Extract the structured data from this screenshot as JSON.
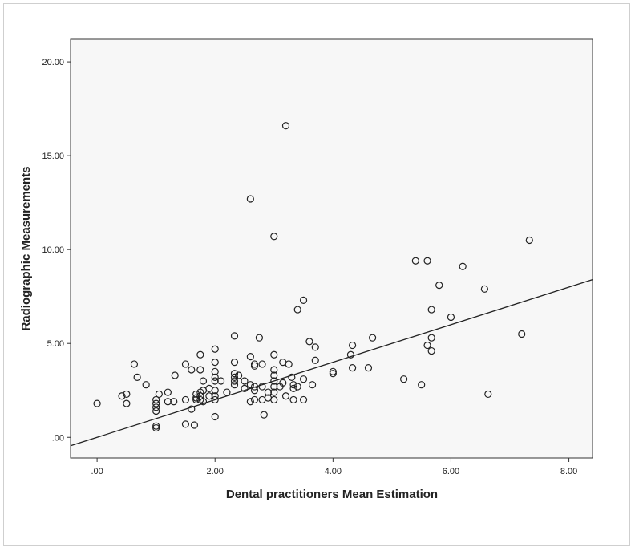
{
  "chart_data": {
    "type": "scatter",
    "title": "",
    "xlabel": "Dental practitioners Mean Estimation",
    "ylabel": "Radiographic Measurements",
    "xlim": [
      -0.45,
      8.4
    ],
    "ylim": [
      -1.1,
      21.2
    ],
    "x_ticks": [
      0,
      2,
      4,
      6,
      8
    ],
    "x_tick_labels": [
      ".00",
      "2.00",
      "4.00",
      "6.00",
      "8.00"
    ],
    "y_ticks": [
      0,
      5,
      10,
      15,
      20
    ],
    "y_tick_labels": [
      ".00",
      "5.00",
      "10.00",
      "15.00",
      "20.00"
    ],
    "reference_line": "y = x",
    "grid": false,
    "colors": {
      "plot_background": "#f7f7f7",
      "marker_stroke": "#222222",
      "line": "#222222"
    },
    "points": [
      [
        0,
        1.8
      ],
      [
        0.42,
        2.2
      ],
      [
        0.5,
        2.3
      ],
      [
        0.5,
        1.8
      ],
      [
        0.63,
        3.9
      ],
      [
        0.68,
        3.2
      ],
      [
        0.83,
        2.8
      ],
      [
        1,
        2.0
      ],
      [
        1,
        1.8
      ],
      [
        1,
        1.6
      ],
      [
        1,
        1.4
      ],
      [
        1,
        0.6
      ],
      [
        1,
        0.5
      ],
      [
        1.05,
        2.3
      ],
      [
        1.2,
        1.9
      ],
      [
        1.2,
        2.4
      ],
      [
        1.3,
        1.9
      ],
      [
        1.32,
        3.3
      ],
      [
        1.5,
        2.0
      ],
      [
        1.5,
        3.9
      ],
      [
        1.5,
        0.7
      ],
      [
        1.6,
        1.5
      ],
      [
        1.6,
        3.6
      ],
      [
        1.65,
        0.65
      ],
      [
        1.68,
        2.3
      ],
      [
        1.68,
        2.1
      ],
      [
        1.68,
        2.0
      ],
      [
        1.75,
        2.0
      ],
      [
        1.75,
        2.2
      ],
      [
        1.75,
        2.4
      ],
      [
        1.75,
        3.6
      ],
      [
        1.75,
        4.4
      ],
      [
        1.8,
        1.9
      ],
      [
        1.8,
        2.5
      ],
      [
        1.8,
        3.0
      ],
      [
        1.9,
        2.2
      ],
      [
        1.9,
        2.6
      ],
      [
        2,
        4.7
      ],
      [
        2,
        4.0
      ],
      [
        2,
        3.5
      ],
      [
        2,
        3.2
      ],
      [
        2,
        3.0
      ],
      [
        2,
        2.5
      ],
      [
        2,
        2.2
      ],
      [
        2,
        2.0
      ],
      [
        2,
        1.1
      ],
      [
        2.1,
        3.0
      ],
      [
        2.2,
        2.4
      ],
      [
        2.33,
        3.0
      ],
      [
        2.33,
        3.2
      ],
      [
        2.33,
        3.4
      ],
      [
        2.33,
        2.8
      ],
      [
        2.33,
        4.0
      ],
      [
        2.33,
        5.4
      ],
      [
        2.4,
        3.3
      ],
      [
        2.5,
        2.6
      ],
      [
        2.5,
        3.0
      ],
      [
        2.6,
        4.3
      ],
      [
        2.6,
        1.9
      ],
      [
        2.6,
        2.8
      ],
      [
        2.6,
        12.7
      ],
      [
        2.67,
        3.9
      ],
      [
        2.67,
        3.8
      ],
      [
        2.67,
        2.0
      ],
      [
        2.67,
        2.5
      ],
      [
        2.67,
        2.7
      ],
      [
        2.75,
        5.3
      ],
      [
        2.8,
        2.7
      ],
      [
        2.8,
        3.9
      ],
      [
        2.8,
        2.0
      ],
      [
        2.83,
        1.2
      ],
      [
        2.9,
        2.4
      ],
      [
        2.9,
        2.1
      ],
      [
        3,
        4.4
      ],
      [
        3,
        3.6
      ],
      [
        3,
        3.3
      ],
      [
        3,
        3.0
      ],
      [
        3,
        2.7
      ],
      [
        3,
        2.4
      ],
      [
        3,
        2.0
      ],
      [
        3,
        10.7
      ],
      [
        3.1,
        2.7
      ],
      [
        3.15,
        2.9
      ],
      [
        3.15,
        4.0
      ],
      [
        3.2,
        16.6
      ],
      [
        3.2,
        2.2
      ],
      [
        3.25,
        3.9
      ],
      [
        3.3,
        3.2
      ],
      [
        3.33,
        2.8
      ],
      [
        3.33,
        2.6
      ],
      [
        3.33,
        2.0
      ],
      [
        3.4,
        6.8
      ],
      [
        3.4,
        2.7
      ],
      [
        3.5,
        7.3
      ],
      [
        3.5,
        3.1
      ],
      [
        3.5,
        2.0
      ],
      [
        3.6,
        5.1
      ],
      [
        3.65,
        2.8
      ],
      [
        3.7,
        4.8
      ],
      [
        3.7,
        4.1
      ],
      [
        4,
        3.5
      ],
      [
        4,
        3.4
      ],
      [
        4.3,
        4.4
      ],
      [
        4.33,
        4.9
      ],
      [
        4.33,
        3.7
      ],
      [
        4.6,
        3.7
      ],
      [
        4.67,
        5.3
      ],
      [
        5.2,
        3.1
      ],
      [
        5.4,
        9.4
      ],
      [
        5.5,
        2.8
      ],
      [
        5.6,
        9.4
      ],
      [
        5.6,
        4.9
      ],
      [
        5.67,
        6.8
      ],
      [
        5.67,
        5.3
      ],
      [
        5.67,
        4.6
      ],
      [
        5.8,
        8.1
      ],
      [
        6,
        6.4
      ],
      [
        6.2,
        9.1
      ],
      [
        6.57,
        7.9
      ],
      [
        6.63,
        2.3
      ],
      [
        7.2,
        5.5
      ],
      [
        7.33,
        10.5
      ]
    ]
  }
}
